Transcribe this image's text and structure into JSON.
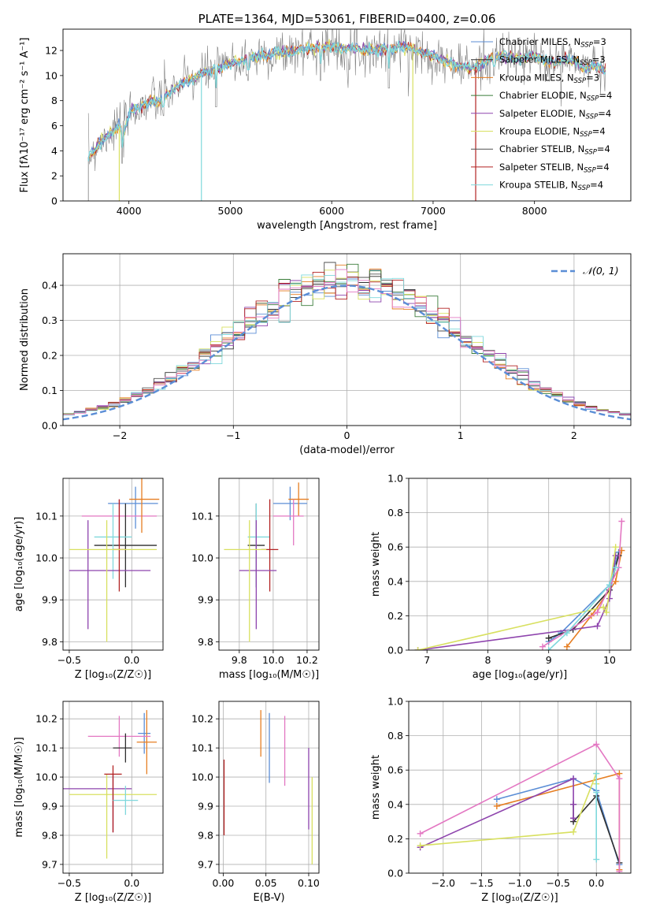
{
  "colors": {
    "chabrier_miles": "#5b8ed6",
    "salpeter_miles": "#2f2f2f",
    "kroupa_miles": "#e67e22",
    "chabrier_elodie": "#3a7d3a",
    "salpeter_elodie": "#8e44ad",
    "kroupa_elodie": "#d8e060",
    "chabrier_stelib": "#505050",
    "salpeter_stelib": "#b22222",
    "kroupa_stelib": "#7fd8dc",
    "pink": "#e377c2",
    "gray": "#808080",
    "gaussian": "#5b8ed6"
  },
  "chart_data": [
    {
      "id": "spectrum",
      "type": "line",
      "title": "PLATE=1364, MJD=53061, FIBERID=0400, z=0.06",
      "xlabel": "wavelength [Angstrom, rest frame]",
      "ylabel": "Flux [fλ10⁻¹⁷ erg cm⁻² s⁻¹ A⁻¹]",
      "xlim": [
        3350,
        8950
      ],
      "ylim": [
        0,
        13.7
      ],
      "xticks": [
        4000,
        5000,
        6000,
        7000,
        8000
      ],
      "yticks": [
        0,
        2,
        4,
        6,
        8,
        10,
        12
      ],
      "legend_position": "upper right",
      "legend": [
        {
          "label": "Chabrier MILES, N",
          "sub": "SSP",
          "tail": "=3",
          "color": "chabrier_miles"
        },
        {
          "label": "Salpeter MILES, N",
          "sub": "SSP",
          "tail": "=3",
          "color": "salpeter_miles"
        },
        {
          "label": "Kroupa MILES, N",
          "sub": "SSP",
          "tail": "=3",
          "color": "kroupa_miles"
        },
        {
          "label": "Chabrier ELODIE, N",
          "sub": "SSP",
          "tail": "=4",
          "color": "chabrier_elodie"
        },
        {
          "label": "Salpeter ELODIE, N",
          "sub": "SSP",
          "tail": "=4",
          "color": "salpeter_elodie"
        },
        {
          "label": "Kroupa ELODIE, N",
          "sub": "SSP",
          "tail": "=4",
          "color": "kroupa_elodie"
        },
        {
          "label": "Chabrier STELIB, N",
          "sub": "SSP",
          "tail": "=4",
          "color": "chabrier_stelib"
        },
        {
          "label": "Salpeter STELIB, N",
          "sub": "SSP",
          "tail": "=4",
          "color": "salpeter_stelib"
        },
        {
          "label": "Kroupa STELIB, N",
          "sub": "SSP",
          "tail": "=4",
          "color": "kroupa_stelib"
        }
      ],
      "continuum": [
        [
          3600,
          3.5
        ],
        [
          3700,
          4.6
        ],
        [
          3800,
          5.4
        ],
        [
          3900,
          6.0
        ],
        [
          3950,
          5.3
        ],
        [
          4000,
          7.0
        ],
        [
          4100,
          7.6
        ],
        [
          4200,
          7.9
        ],
        [
          4300,
          8.0
        ],
        [
          4400,
          8.6
        ],
        [
          4500,
          9.3
        ],
        [
          4600,
          9.6
        ],
        [
          4700,
          10.0
        ],
        [
          4800,
          10.4
        ],
        [
          4900,
          10.6
        ],
        [
          5000,
          11.0
        ],
        [
          5100,
          11.1
        ],
        [
          5200,
          11.4
        ],
        [
          5300,
          11.6
        ],
        [
          5400,
          11.7
        ],
        [
          5500,
          11.8
        ],
        [
          5600,
          11.9
        ],
        [
          5700,
          12.1
        ],
        [
          5800,
          12.2
        ],
        [
          5900,
          12.3
        ],
        [
          6000,
          12.3
        ],
        [
          6100,
          12.1
        ],
        [
          6200,
          12.2
        ],
        [
          6300,
          12.0
        ],
        [
          6400,
          12.0
        ],
        [
          6500,
          12.2
        ],
        [
          6600,
          12.1
        ],
        [
          6700,
          12.3
        ],
        [
          6800,
          12.1
        ],
        [
          6900,
          11.8
        ],
        [
          7000,
          11.6
        ],
        [
          7100,
          11.2
        ],
        [
          7200,
          10.9
        ],
        [
          7300,
          10.7
        ],
        [
          7400,
          10.6
        ],
        [
          7500,
          11.0
        ],
        [
          7600,
          11.5
        ],
        [
          7700,
          11.6
        ],
        [
          7800,
          11.3
        ],
        [
          7900,
          11.4
        ],
        [
          8000,
          11.6
        ],
        [
          8100,
          11.2
        ],
        [
          8200,
          11.0
        ],
        [
          8300,
          11.3
        ],
        [
          8400,
          11.1
        ],
        [
          8500,
          10.6
        ],
        [
          8600,
          10.8
        ],
        [
          8700,
          10.4
        ]
      ],
      "absorption_spikes": [
        [
          3934,
          3.0
        ],
        [
          4102,
          6.5
        ],
        [
          4340,
          6.8
        ],
        [
          4861,
          7.5
        ],
        [
          5175,
          9.6
        ],
        [
          5890,
          9.6
        ],
        [
          6563,
          9.0
        ],
        [
          7600,
          10.0
        ]
      ],
      "model_dropouts": [
        [
          3905,
          0,
          "kroupa_elodie"
        ],
        [
          4715,
          0,
          "kroupa_stelib"
        ],
        [
          6800,
          0,
          "kroupa_elodie"
        ],
        [
          7420,
          0,
          "salpeter_stelib"
        ]
      ]
    },
    {
      "id": "residuals",
      "type": "histogram",
      "xlabel": "(data-model)/error",
      "ylabel": "Normed distribution",
      "xlim": [
        -2.5,
        2.5
      ],
      "ylim": [
        0,
        0.49
      ],
      "xticks": [
        -2,
        -1,
        0,
        1,
        2
      ],
      "yticks": [
        0.0,
        0.1,
        0.2,
        0.3,
        0.4
      ],
      "legend_position": "upper right",
      "gaussian_label": "𝒩(0, 1)",
      "bin_width": 0.1
    },
    {
      "id": "age_vs_Z",
      "type": "errorbar",
      "xlabel": "Z [log₁₀(Z/Z☉)]",
      "ylabel": "age [log₁₀(age/yr)]",
      "xlim": [
        -0.55,
        0.25
      ],
      "ylim": [
        9.78,
        10.19
      ],
      "xticks": [
        -0.5,
        0.0
      ],
      "yticks": [
        9.8,
        9.9,
        10.0,
        10.1
      ],
      "points": [
        {
          "x": 0.03,
          "xerr": [
            0.22,
            0.18
          ],
          "y": 10.13,
          "yerr": [
            0.06,
            0.04
          ],
          "color": "chabrier_miles"
        },
        {
          "x": -0.1,
          "xerr": [
            0.3,
            0.3
          ],
          "y": 10.1,
          "yerr": [
            0.07,
            0.04
          ],
          "color": "pink"
        },
        {
          "x": 0.08,
          "xerr": [
            0.1,
            0.14
          ],
          "y": 10.14,
          "yerr": [
            0.08,
            0.05
          ],
          "color": "kroupa_miles"
        },
        {
          "x": -0.05,
          "xerr": [
            0.25,
            0.25
          ],
          "y": 10.03,
          "yerr": [
            0.1,
            0.1
          ],
          "color": "salpeter_miles"
        },
        {
          "x": -0.15,
          "xerr": [
            0.15,
            0.15
          ],
          "y": 10.05,
          "yerr": [
            0.1,
            0.08
          ],
          "color": "kroupa_stelib"
        },
        {
          "x": -0.35,
          "xerr": [
            0.15,
            0.5
          ],
          "y": 9.97,
          "yerr": [
            0.14,
            0.12
          ],
          "color": "salpeter_elodie"
        },
        {
          "x": -0.1,
          "xerr": [
            0.05,
            0.05
          ],
          "y": 10.02,
          "yerr": [
            0.1,
            0.12
          ],
          "color": "salpeter_stelib"
        },
        {
          "x": -0.2,
          "xerr": [
            0.3,
            0.4
          ],
          "y": 10.02,
          "yerr": [
            0.22,
            0.07
          ],
          "color": "kroupa_elodie"
        }
      ]
    },
    {
      "id": "age_vs_mass",
      "type": "errorbar",
      "xlabel": "mass [log₁₀(M/M☉)]",
      "xlim": [
        9.68,
        10.27
      ],
      "ylim": [
        9.78,
        10.19
      ],
      "xticks": [
        9.8,
        10.0,
        10.2
      ],
      "yticks": [
        9.8,
        9.9,
        10.0,
        10.1
      ],
      "points": [
        {
          "x": 10.1,
          "xerr": [
            0.1,
            0.1
          ],
          "y": 10.13,
          "yerr": [
            0.04,
            0.04
          ],
          "color": "chabrier_miles"
        },
        {
          "x": 10.15,
          "xerr": [
            0.06,
            0.06
          ],
          "y": 10.14,
          "yerr": [
            0.04,
            0.04
          ],
          "color": "kroupa_miles"
        },
        {
          "x": 10.12,
          "xerr": [
            0.12,
            0.06
          ],
          "y": 10.1,
          "yerr": [
            0.07,
            0.04
          ],
          "color": "pink"
        },
        {
          "x": 9.9,
          "xerr": [
            0.05,
            0.05
          ],
          "y": 10.03,
          "yerr": [
            0.1,
            0.1
          ],
          "color": "salpeter_miles"
        },
        {
          "x": 9.9,
          "xerr": [
            0.05,
            0.08
          ],
          "y": 10.05,
          "yerr": [
            0.12,
            0.08
          ],
          "color": "kroupa_stelib"
        },
        {
          "x": 9.98,
          "xerr": [
            0.05,
            0.05
          ],
          "y": 10.02,
          "yerr": [
            0.1,
            0.12
          ],
          "color": "salpeter_stelib"
        },
        {
          "x": 9.9,
          "xerr": [
            0.1,
            0.12
          ],
          "y": 9.97,
          "yerr": [
            0.14,
            0.12
          ],
          "color": "salpeter_elodie"
        },
        {
          "x": 9.86,
          "xerr": [
            0.15,
            0.1
          ],
          "y": 10.02,
          "yerr": [
            0.22,
            0.07
          ],
          "color": "kroupa_elodie"
        }
      ]
    },
    {
      "id": "massweight_vs_age",
      "type": "line",
      "xlabel": "age [log₁₀(age/yr)]",
      "ylabel": "mass weight",
      "xlim": [
        6.7,
        10.35
      ],
      "ylim": [
        0,
        1.0
      ],
      "xticks": [
        7,
        8,
        9,
        10
      ],
      "yticks": [
        0.0,
        0.2,
        0.4,
        0.6,
        0.8,
        1.0
      ],
      "series": [
        {
          "color": "chabrier_miles",
          "x": [
            9.0,
            9.2,
            10.0,
            10.15
          ],
          "y": [
            0.05,
            0.1,
            0.38,
            0.57
          ]
        },
        {
          "color": "kroupa_miles",
          "x": [
            9.3,
            9.7,
            10.1,
            10.2
          ],
          "y": [
            0.02,
            0.2,
            0.4,
            0.58
          ]
        },
        {
          "color": "salpeter_miles",
          "x": [
            9.0,
            9.4,
            10.0,
            10.15
          ],
          "y": [
            0.07,
            0.12,
            0.35,
            0.55
          ]
        },
        {
          "color": "salpeter_elodie",
          "x": [
            6.85,
            9.8,
            10.0,
            10.1
          ],
          "y": [
            0.0,
            0.14,
            0.3,
            0.55
          ]
        },
        {
          "color": "kroupa_elodie",
          "x": [
            6.85,
            9.9,
            9.95,
            10.1
          ],
          "y": [
            0.0,
            0.25,
            0.22,
            0.6
          ]
        },
        {
          "color": "pink",
          "x": [
            8.9,
            9.8,
            10.15,
            10.2
          ],
          "y": [
            0.02,
            0.22,
            0.48,
            0.75
          ]
        },
        {
          "color": "kroupa_stelib",
          "x": [
            9.0,
            9.3,
            10.0,
            10.1
          ],
          "y": [
            0.0,
            0.1,
            0.38,
            0.48
          ]
        }
      ]
    },
    {
      "id": "mass_vs_Z",
      "type": "errorbar",
      "xlabel": "Z [log₁₀(Z/Z☉)]",
      "ylabel": "mass [log₁₀(M/M☉)]",
      "xlim": [
        -0.55,
        0.25
      ],
      "ylim": [
        9.67,
        10.26
      ],
      "xticks": [
        -0.5,
        0.0
      ],
      "yticks": [
        9.7,
        9.8,
        9.9,
        10.0,
        10.1,
        10.2
      ],
      "points": [
        {
          "x": 0.1,
          "xerr": [
            0.05,
            0.05
          ],
          "y": 10.15,
          "yerr": [
            0.07,
            0.07
          ],
          "color": "chabrier_miles"
        },
        {
          "x": 0.12,
          "xerr": [
            0.08,
            0.08
          ],
          "y": 10.12,
          "yerr": [
            0.11,
            0.11
          ],
          "color": "kroupa_miles"
        },
        {
          "x": -0.1,
          "xerr": [
            0.25,
            0.25
          ],
          "y": 10.14,
          "yerr": [
            0.07,
            0.07
          ],
          "color": "pink"
        },
        {
          "x": -0.05,
          "xerr": [
            0.1,
            0.05
          ],
          "y": 10.1,
          "yerr": [
            0.05,
            0.05
          ],
          "color": "salpeter_miles"
        },
        {
          "x": -0.15,
          "xerr": [
            0.4,
            0.15
          ],
          "y": 9.96,
          "yerr": [
            0.15,
            0.05
          ],
          "color": "salpeter_elodie"
        },
        {
          "x": -0.2,
          "xerr": [
            0.3,
            0.4
          ],
          "y": 9.94,
          "yerr": [
            0.22,
            0.07
          ],
          "color": "kroupa_elodie"
        },
        {
          "x": -0.15,
          "xerr": [
            0.07,
            0.07
          ],
          "y": 10.01,
          "yerr": [
            0.2,
            0.03
          ],
          "color": "salpeter_stelib"
        },
        {
          "x": -0.05,
          "xerr": [
            0.1,
            0.1
          ],
          "y": 9.92,
          "yerr": [
            0.05,
            0.05
          ],
          "color": "kroupa_stelib"
        }
      ]
    },
    {
      "id": "mass_vs_EBV",
      "type": "errorbar",
      "xlabel": "E(B-V)",
      "xlim": [
        -0.005,
        0.112
      ],
      "ylim": [
        9.67,
        10.26
      ],
      "xticks": [
        0.0,
        0.05,
        0.1
      ],
      "yticks": [
        9.7,
        9.8,
        9.9,
        10.0,
        10.1,
        10.2
      ],
      "points": [
        {
          "x": 0.001,
          "y": 9.93,
          "yerr": [
            0.13,
            0.13
          ],
          "color": "salpeter_stelib"
        },
        {
          "x": 0.044,
          "y": 10.15,
          "yerr": [
            0.08,
            0.08
          ],
          "color": "kroupa_miles"
        },
        {
          "x": 0.054,
          "y": 10.1,
          "yerr": [
            0.12,
            0.12
          ],
          "color": "chabrier_miles"
        },
        {
          "x": 0.072,
          "y": 10.09,
          "yerr": [
            0.12,
            0.12
          ],
          "color": "pink"
        },
        {
          "x": 0.1,
          "y": 9.96,
          "yerr": [
            0.14,
            0.14
          ],
          "color": "salpeter_elodie"
        },
        {
          "x": 0.104,
          "y": 9.85,
          "yerr": [
            0.15,
            0.15
          ],
          "color": "kroupa_elodie"
        }
      ]
    },
    {
      "id": "massweight_vs_Z",
      "type": "line",
      "xlabel": "Z [log₁₀(Z/Z☉)]",
      "ylabel": "mass weight",
      "xlim": [
        -2.45,
        0.45
      ],
      "ylim": [
        0,
        1.0
      ],
      "xticks": [
        -2.0,
        -1.5,
        -1.0,
        -0.5,
        0.0
      ],
      "yticks": [
        0.0,
        0.2,
        0.4,
        0.6,
        0.8,
        1.0
      ],
      "series": [
        {
          "color": "chabrier_miles",
          "x": [
            -1.3,
            -0.3,
            0.0,
            0.3
          ],
          "y": [
            0.43,
            0.55,
            0.48,
            0.05
          ]
        },
        {
          "color": "kroupa_miles",
          "x": [
            -1.3,
            0.3,
            0.3
          ],
          "y": [
            0.39,
            0.58,
            0.02
          ]
        },
        {
          "color": "salpeter_miles",
          "x": [
            -0.3,
            -0.3,
            0.0,
            0.3
          ],
          "y": [
            0.4,
            0.3,
            0.45,
            0.06
          ]
        },
        {
          "color": "salpeter_elodie",
          "x": [
            -2.3,
            -0.3,
            -0.3,
            -0.3
          ],
          "y": [
            0.15,
            0.55,
            0.4,
            0.32
          ]
        },
        {
          "color": "kroupa_elodie",
          "x": [
            -2.3,
            -0.3,
            0.0,
            0.0
          ],
          "y": [
            0.16,
            0.24,
            0.58,
            0.52
          ]
        },
        {
          "color": "pink",
          "x": [
            -2.3,
            0.0,
            0.3,
            0.3
          ],
          "y": [
            0.23,
            0.75,
            0.55,
            0.01
          ]
        },
        {
          "color": "kroupa_stelib",
          "x": [
            0.0,
            0.0,
            0.0
          ],
          "y": [
            0.47,
            0.08,
            0.58
          ]
        }
      ]
    }
  ]
}
